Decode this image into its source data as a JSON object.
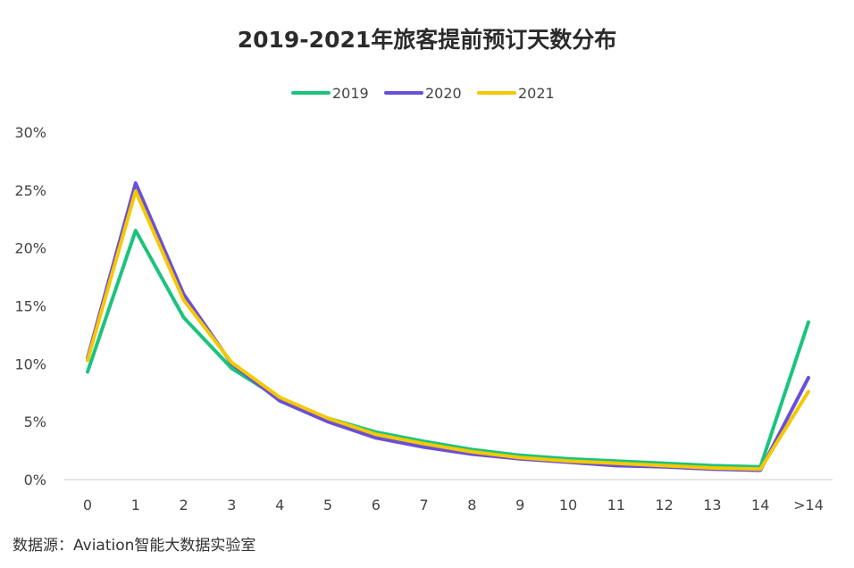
{
  "chart_data": {
    "type": "line",
    "title": "2019-2021年旅客提前预订天数分布",
    "xlabel": "",
    "ylabel": "",
    "categories": [
      "0",
      "1",
      "2",
      "3",
      "4",
      "5",
      "6",
      "7",
      "8",
      "9",
      "10",
      "11",
      "12",
      "13",
      "14",
      ">14"
    ],
    "ylim": [
      0,
      30
    ],
    "yticks": [
      0,
      5,
      10,
      15,
      20,
      25,
      30
    ],
    "ytick_labels": [
      "0%",
      "5%",
      "10%",
      "15%",
      "20%",
      "25%",
      "30%"
    ],
    "grid": false,
    "legend_position": "top-center",
    "series": [
      {
        "name": "2019",
        "color": "#1BC47D",
        "values": [
          9.3,
          21.5,
          14.0,
          9.6,
          7.0,
          5.3,
          4.1,
          3.3,
          2.6,
          2.1,
          1.8,
          1.6,
          1.4,
          1.2,
          1.1,
          13.6
        ]
      },
      {
        "name": "2020",
        "color": "#6A4FD8",
        "values": [
          10.5,
          25.6,
          16.0,
          10.0,
          6.8,
          5.0,
          3.6,
          2.8,
          2.2,
          1.8,
          1.5,
          1.2,
          1.1,
          0.9,
          0.8,
          8.8
        ]
      },
      {
        "name": "2021",
        "color": "#F5C800",
        "values": [
          10.3,
          24.9,
          15.5,
          10.1,
          7.1,
          5.3,
          3.9,
          3.1,
          2.4,
          1.9,
          1.6,
          1.4,
          1.2,
          1.0,
          0.9,
          7.6
        ]
      }
    ]
  },
  "footer": {
    "source": "数据源：Aviation智能大数据实验室"
  }
}
